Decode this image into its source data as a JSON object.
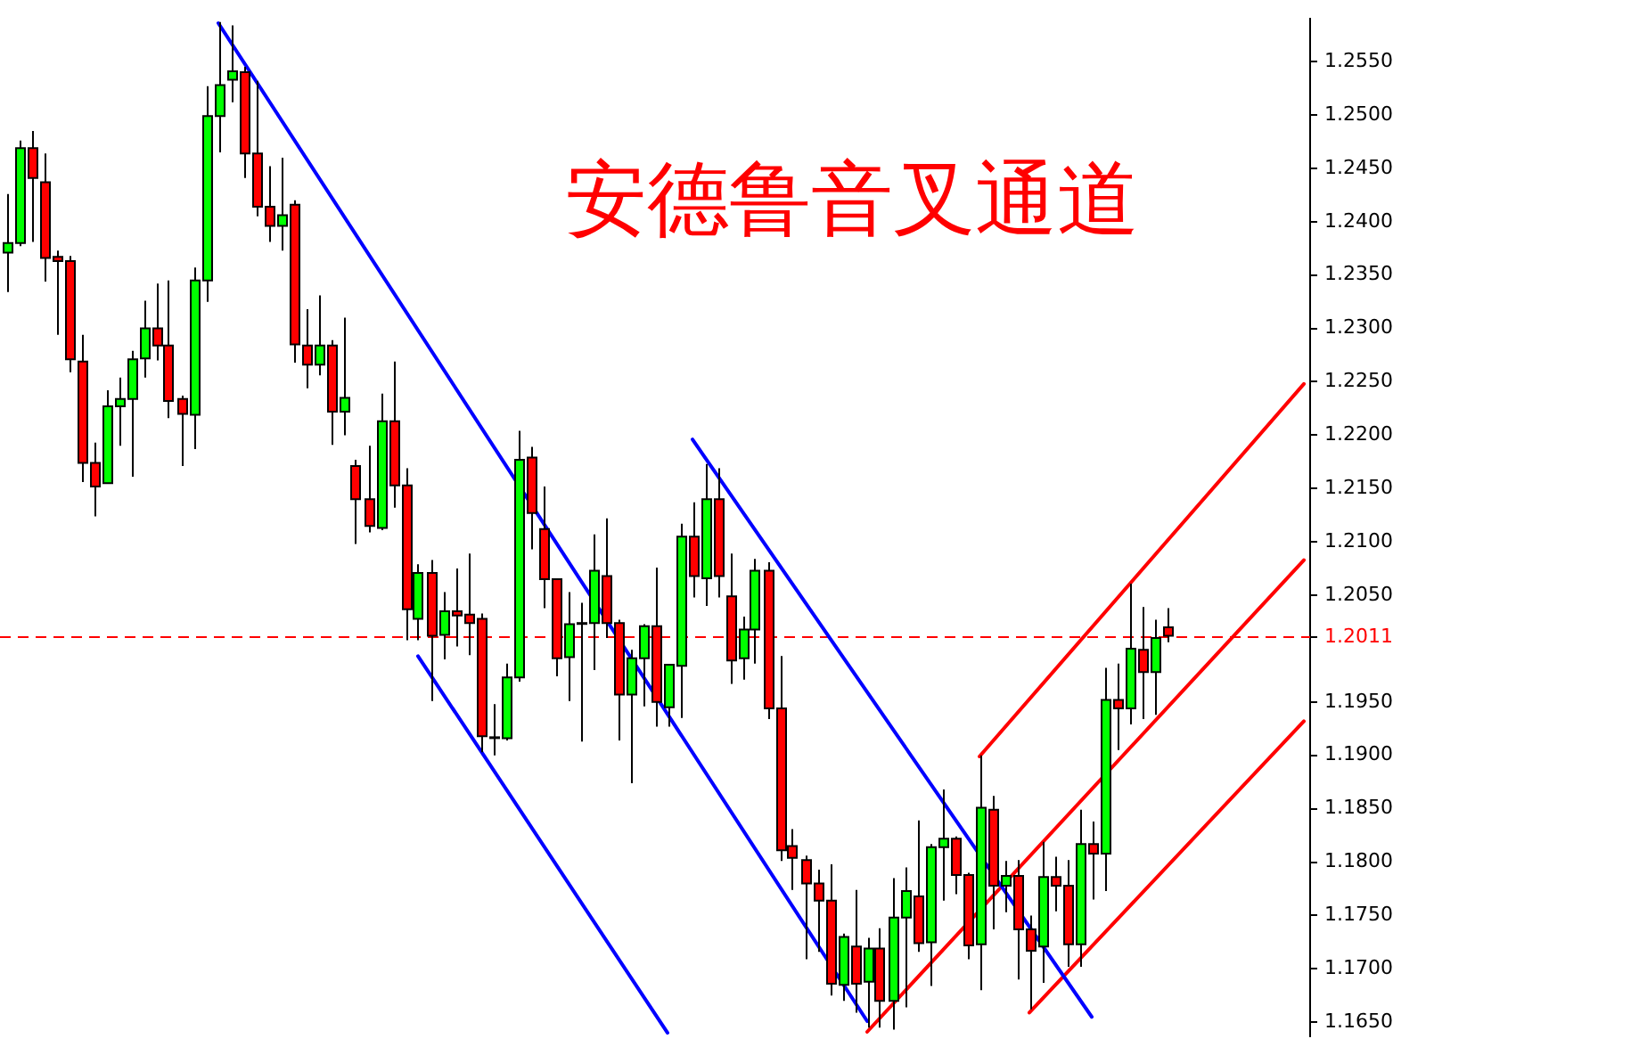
{
  "chart_data": {
    "type": "candlestick",
    "title": "安德鲁音叉通道",
    "categories": [
      null,
      null,
      null,
      null,
      null,
      null,
      null,
      null,
      null,
      null,
      null,
      null,
      null,
      null,
      null,
      null,
      null,
      null,
      null,
      null,
      null,
      null,
      null,
      null,
      null,
      null,
      null,
      null,
      null,
      null,
      null,
      null,
      null,
      null,
      null,
      null,
      null,
      null,
      null,
      null,
      null,
      null,
      null,
      null,
      null,
      null,
      null,
      null,
      null,
      null,
      null,
      null,
      null,
      null,
      null,
      null,
      null,
      null,
      null,
      null,
      null,
      null,
      null,
      null,
      null,
      null,
      null,
      null,
      null,
      null,
      null,
      null,
      null,
      null,
      null,
      null,
      null,
      null,
      null,
      null,
      null,
      null,
      null,
      null,
      null,
      null,
      null,
      null,
      null,
      null,
      null,
      null,
      null,
      null,
      null,
      null,
      null,
      null,
      null,
      null,
      null,
      null,
      null,
      null,
      null
    ],
    "ohlc": [
      [
        1.2371,
        1.2426,
        1.2334,
        1.238
      ],
      [
        1.238,
        1.2476,
        1.2377,
        1.2469
      ],
      [
        1.2469,
        1.2485,
        1.2381,
        1.2441
      ],
      [
        1.2437,
        1.2464,
        1.2344,
        1.2366
      ],
      [
        1.2367,
        1.2373,
        1.2294,
        1.2363
      ],
      [
        1.2363,
        1.2368,
        1.2259,
        1.2271
      ],
      [
        1.2269,
        1.2294,
        1.2156,
        1.2174
      ],
      [
        1.2174,
        1.2193,
        1.2124,
        1.2152
      ],
      [
        1.2155,
        1.2242,
        1.2155,
        1.2227
      ],
      [
        1.2227,
        1.2254,
        1.219,
        1.2234
      ],
      [
        1.2234,
        1.2279,
        1.2161,
        1.2271
      ],
      [
        1.2272,
        1.2326,
        1.2254,
        1.23
      ],
      [
        1.23,
        1.2342,
        1.227,
        1.2284
      ],
      [
        1.2284,
        1.2345,
        1.2216,
        1.2232
      ],
      [
        1.2234,
        1.2237,
        1.2171,
        1.222
      ],
      [
        1.2219,
        1.2357,
        1.2187,
        1.2345
      ],
      [
        1.2345,
        1.2527,
        1.2325,
        1.2499
      ],
      [
        1.2499,
        1.2587,
        1.2465,
        1.2528
      ],
      [
        1.2533,
        1.2584,
        1.2512,
        1.2541
      ],
      [
        1.254,
        1.2545,
        1.2441,
        1.2464
      ],
      [
        1.2464,
        1.2532,
        1.2405,
        1.2414
      ],
      [
        1.2414,
        1.2452,
        1.2381,
        1.2396
      ],
      [
        1.2396,
        1.246,
        1.2373,
        1.2406
      ],
      [
        1.2416,
        1.242,
        1.2268,
        1.2285
      ],
      [
        1.2284,
        1.2318,
        1.2244,
        1.2266
      ],
      [
        1.2266,
        1.2331,
        1.2256,
        1.2284
      ],
      [
        1.2284,
        1.2289,
        1.2191,
        1.2222
      ],
      [
        1.2222,
        1.231,
        1.22,
        1.2235
      ],
      [
        1.2171,
        1.2177,
        1.2098,
        1.214
      ],
      [
        1.214,
        1.219,
        1.2109,
        1.2115
      ],
      [
        1.2113,
        1.2239,
        1.2111,
        1.2213
      ],
      [
        1.2213,
        1.2269,
        1.2132,
        1.2153
      ],
      [
        1.2153,
        1.2169,
        1.2008,
        1.2037
      ],
      [
        1.2028,
        1.2079,
        1.2008,
        1.2071
      ],
      [
        1.2071,
        1.2083,
        1.1951,
        1.2012
      ],
      [
        1.2013,
        1.2053,
        1.199,
        1.2035
      ],
      [
        1.2035,
        1.2075,
        1.2002,
        1.2031
      ],
      [
        1.2032,
        1.2089,
        1.1994,
        1.2024
      ],
      [
        1.2028,
        1.2033,
        1.1903,
        1.1918
      ],
      [
        1.1917,
        1.1948,
        1.19,
        1.1917
      ],
      [
        1.1916,
        1.1986,
        1.1914,
        1.1973
      ],
      [
        1.1973,
        1.2204,
        1.1969,
        1.2177
      ],
      [
        1.2179,
        1.2189,
        1.2093,
        1.2127
      ],
      [
        1.2112,
        1.2152,
        1.2038,
        1.2065
      ],
      [
        1.2065,
        1.2065,
        1.1974,
        1.1991
      ],
      [
        1.1992,
        1.2053,
        1.1951,
        1.2023
      ],
      [
        1.2024,
        1.2043,
        1.1913,
        1.2024
      ],
      [
        1.2024,
        1.2107,
        1.198,
        1.2073
      ],
      [
        1.2068,
        1.2122,
        1.201,
        1.2024
      ],
      [
        1.2024,
        1.2027,
        1.1914,
        1.1957
      ],
      [
        1.1957,
        1.1999,
        1.1874,
        1.1991
      ],
      [
        1.1991,
        1.2023,
        1.1946,
        1.2021
      ],
      [
        1.2021,
        1.2076,
        1.1927,
        1.195
      ],
      [
        1.1945,
        1.1985,
        1.1927,
        1.1985
      ],
      [
        1.1984,
        1.2117,
        1.1935,
        1.2105
      ],
      [
        1.2105,
        1.2137,
        1.2048,
        1.2068
      ],
      [
        1.2066,
        1.2173,
        1.204,
        1.214
      ],
      [
        1.214,
        1.2169,
        1.2048,
        1.2068
      ],
      [
        1.2049,
        1.2089,
        1.1967,
        1.1989
      ],
      [
        1.1991,
        1.203,
        1.1971,
        1.2018
      ],
      [
        1.2018,
        1.2084,
        1.1986,
        1.2073
      ],
      [
        1.2073,
        1.2081,
        1.1934,
        1.1944
      ],
      [
        1.1944,
        1.1993,
        1.1801,
        1.1811
      ],
      [
        1.1815,
        1.1831,
        1.1774,
        1.1804
      ],
      [
        1.1802,
        1.1806,
        1.1709,
        1.178
      ],
      [
        1.178,
        1.1793,
        1.1716,
        1.1764
      ],
      [
        1.1764,
        1.1798,
        1.1675,
        1.1686
      ],
      [
        1.1685,
        1.1733,
        1.167,
        1.173
      ],
      [
        1.1721,
        1.1774,
        1.1659,
        1.1686
      ],
      [
        1.1688,
        1.1729,
        1.1645,
        1.1719
      ],
      [
        1.1719,
        1.1738,
        1.1645,
        1.167
      ],
      [
        1.167,
        1.1785,
        1.1643,
        1.1748
      ],
      [
        1.1748,
        1.1795,
        1.1664,
        1.1773
      ],
      [
        1.1768,
        1.1839,
        1.1716,
        1.1724
      ],
      [
        1.1725,
        1.1817,
        1.1684,
        1.1814
      ],
      [
        1.1814,
        1.1868,
        1.1764,
        1.1822
      ],
      [
        1.1822,
        1.1824,
        1.177,
        1.1788
      ],
      [
        1.1788,
        1.179,
        1.1709,
        1.1722
      ],
      [
        1.1723,
        1.19,
        1.168,
        1.1851
      ],
      [
        1.1849,
        1.1862,
        1.1737,
        1.1778
      ],
      [
        1.1778,
        1.1801,
        1.1753,
        1.1787
      ],
      [
        1.1787,
        1.1802,
        1.169,
        1.1737
      ],
      [
        1.1737,
        1.175,
        1.1662,
        1.1717
      ],
      [
        1.1721,
        1.1819,
        1.1687,
        1.1786
      ],
      [
        1.1786,
        1.1805,
        1.1754,
        1.1778
      ],
      [
        1.1778,
        1.1802,
        1.1702,
        1.1723
      ],
      [
        1.1723,
        1.1849,
        1.1702,
        1.1817
      ],
      [
        1.1817,
        1.1838,
        1.1765,
        1.1808
      ],
      [
        1.1808,
        1.1982,
        1.1773,
        1.1952
      ],
      [
        1.1952,
        1.1986,
        1.1905,
        1.1944
      ],
      [
        1.1944,
        1.2061,
        1.1929,
        1.2
      ],
      [
        1.1999,
        1.2039,
        1.1934,
        1.1978
      ],
      [
        1.1978,
        1.2027,
        1.1938,
        1.201
      ],
      [
        1.202,
        1.2038,
        1.2006,
        1.2012
      ],
      null,
      null,
      null,
      null,
      null,
      null,
      null,
      null,
      null,
      null,
      null
    ],
    "colors": [
      "#00ff00",
      "#00ff00",
      "#ff0000",
      "#ff0000",
      "#ff0000",
      "#ff0000",
      "#ff0000",
      "#ff0000",
      "#00ff00",
      "#00ff00",
      "#00ff00",
      "#00ff00",
      "#ff0000",
      "#ff0000",
      "#ff0000",
      "#00ff00",
      "#00ff00",
      "#00ff00",
      "#00ff00",
      "#ff0000",
      "#ff0000",
      "#ff0000",
      "#00ff00",
      "#ff0000",
      "#ff0000",
      "#00ff00",
      "#ff0000",
      "#00ff00",
      "#ff0000",
      "#ff0000",
      "#00ff00",
      "#ff0000",
      "#ff0000",
      "#00ff00",
      "#ff0000",
      "#00ff00",
      "#ff0000",
      "#ff0000",
      "#ff0000",
      "#000000",
      "#00ff00",
      "#00ff00",
      "#ff0000",
      "#ff0000",
      "#ff0000",
      "#00ff00",
      "#000000",
      "#00ff00",
      "#ff0000",
      "#ff0000",
      "#00ff00",
      "#00ff00",
      "#ff0000",
      "#00ff00",
      "#00ff00",
      "#ff0000",
      "#00ff00",
      "#ff0000",
      "#ff0000",
      "#00ff00",
      "#00ff00",
      "#ff0000",
      "#ff0000",
      "#ff0000",
      "#ff0000",
      "#ff0000",
      "#ff0000",
      "#00ff00",
      "#ff0000",
      "#00ff00",
      "#ff0000",
      "#00ff00",
      "#00ff00",
      "#ff0000",
      "#00ff00",
      "#00ff00",
      "#ff0000",
      "#ff0000",
      "#00ff00",
      "#ff0000",
      "#00ff00",
      "#ff0000",
      "#ff0000",
      "#00ff00",
      "#ff0000",
      "#ff0000",
      "#00ff00",
      "#ff0000",
      "#00ff00",
      "#ff0000",
      "#00ff00",
      "#ff0000",
      "#00ff00",
      "#ff0000",
      null,
      null,
      null,
      null,
      null,
      null,
      null,
      null,
      null,
      null,
      null
    ],
    "series": [
      {
        "type": "line",
        "color": "#0000ff",
        "values": [
          null,
          null,
          null,
          null,
          null,
          null,
          null,
          null,
          null,
          null,
          null,
          null,
          null,
          null,
          null,
          null,
          null,
          1.2586,
          null,
          null,
          null,
          null,
          null,
          null,
          null,
          null,
          null,
          null,
          null,
          null,
          null,
          null,
          null,
          null,
          null,
          null,
          null,
          null,
          null,
          null,
          null,
          null,
          null,
          null,
          null,
          null,
          null,
          null,
          null,
          null,
          null,
          null,
          null,
          null,
          null,
          null,
          null,
          null,
          null,
          null,
          null,
          null,
          null,
          null,
          null,
          null,
          null,
          null,
          null,
          1.1651,
          null,
          null,
          null,
          null,
          null,
          null,
          null,
          null,
          null,
          null,
          null,
          null,
          null,
          null,
          null,
          null,
          null,
          null,
          null,
          null,
          null,
          null,
          null,
          null,
          null,
          null,
          null,
          null,
          null,
          null,
          null,
          null,
          null,
          null,
          null
        ]
      },
      {
        "type": "line",
        "color": "#0000ff",
        "values": [
          null,
          null,
          null,
          null,
          null,
          null,
          null,
          null,
          null,
          null,
          null,
          null,
          null,
          null,
          null,
          null,
          null,
          null,
          null,
          null,
          null,
          null,
          null,
          null,
          null,
          null,
          null,
          null,
          null,
          null,
          null,
          null,
          null,
          1.1993,
          null,
          null,
          null,
          null,
          null,
          null,
          null,
          null,
          null,
          null,
          null,
          null,
          null,
          null,
          null,
          null,
          null,
          null,
          null,
          1.164,
          null,
          null,
          null,
          null,
          null,
          null,
          null,
          null,
          null,
          null,
          null,
          null,
          null,
          null,
          null,
          null,
          null,
          null,
          null,
          null,
          null,
          null,
          null,
          null,
          null,
          null,
          null,
          null,
          null,
          null,
          null,
          null,
          null,
          null,
          null,
          null,
          null,
          null,
          null,
          null,
          null,
          null,
          null,
          null,
          null,
          null,
          null,
          null,
          null,
          null,
          null
        ]
      },
      {
        "type": "line",
        "color": "#0000ff",
        "values": [
          null,
          null,
          null,
          null,
          null,
          null,
          null,
          null,
          null,
          null,
          null,
          null,
          null,
          null,
          null,
          null,
          null,
          null,
          null,
          null,
          null,
          null,
          null,
          null,
          null,
          null,
          null,
          null,
          null,
          null,
          null,
          null,
          null,
          null,
          null,
          null,
          null,
          null,
          null,
          null,
          null,
          null,
          null,
          null,
          null,
          null,
          null,
          null,
          null,
          null,
          null,
          null,
          null,
          null,
          null,
          1.2196,
          null,
          null,
          null,
          null,
          null,
          null,
          null,
          null,
          null,
          null,
          null,
          null,
          null,
          null,
          null,
          null,
          null,
          null,
          null,
          null,
          null,
          null,
          null,
          null,
          null,
          null,
          null,
          null,
          null,
          null,
          null,
          1.1655,
          null,
          null,
          null,
          null,
          null,
          null,
          null,
          null,
          null,
          null,
          null,
          null,
          null,
          null,
          null,
          null,
          null
        ]
      },
      {
        "type": "line",
        "color": "#ff0000",
        "values": [
          null,
          null,
          null,
          null,
          null,
          null,
          null,
          null,
          null,
          null,
          null,
          null,
          null,
          null,
          null,
          null,
          null,
          null,
          null,
          null,
          null,
          null,
          null,
          null,
          null,
          null,
          null,
          null,
          null,
          null,
          null,
          null,
          null,
          null,
          null,
          null,
          null,
          null,
          null,
          null,
          null,
          null,
          null,
          null,
          null,
          null,
          null,
          null,
          null,
          null,
          null,
          null,
          null,
          null,
          null,
          null,
          null,
          null,
          null,
          null,
          null,
          null,
          null,
          null,
          null,
          null,
          null,
          null,
          null,
          null,
          null,
          null,
          null,
          null,
          null,
          null,
          null,
          null,
          1.1899,
          null,
          null,
          null,
          null,
          null,
          null,
          null,
          null,
          null,
          null,
          null,
          null,
          null,
          null,
          null,
          null,
          null,
          null,
          null,
          null,
          null,
          null,
          null,
          null,
          null,
          1.2248
        ]
      },
      {
        "type": "line",
        "color": "#ff0000",
        "values": [
          null,
          null,
          null,
          null,
          null,
          null,
          null,
          null,
          null,
          null,
          null,
          null,
          null,
          null,
          null,
          null,
          null,
          null,
          null,
          null,
          null,
          null,
          null,
          null,
          null,
          null,
          null,
          null,
          null,
          null,
          null,
          null,
          null,
          null,
          null,
          null,
          null,
          null,
          null,
          null,
          null,
          null,
          null,
          null,
          null,
          null,
          null,
          null,
          null,
          null,
          null,
          null,
          null,
          null,
          null,
          null,
          null,
          null,
          null,
          null,
          null,
          null,
          null,
          null,
          null,
          null,
          null,
          null,
          null,
          1.1641,
          null,
          null,
          null,
          null,
          null,
          null,
          null,
          null,
          null,
          null,
          null,
          null,
          null,
          null,
          null,
          null,
          null,
          null,
          null,
          null,
          null,
          null,
          null,
          null,
          null,
          null,
          null,
          null,
          null,
          null,
          null,
          null,
          null,
          null,
          1.2083
        ]
      },
      {
        "type": "line",
        "color": "#ff0000",
        "values": [
          null,
          null,
          null,
          null,
          null,
          null,
          null,
          null,
          null,
          null,
          null,
          null,
          null,
          null,
          null,
          null,
          null,
          null,
          null,
          null,
          null,
          null,
          null,
          null,
          null,
          null,
          null,
          null,
          null,
          null,
          null,
          null,
          null,
          null,
          null,
          null,
          null,
          null,
          null,
          null,
          null,
          null,
          null,
          null,
          null,
          null,
          null,
          null,
          null,
          null,
          null,
          null,
          null,
          null,
          null,
          null,
          null,
          null,
          null,
          null,
          null,
          null,
          null,
          null,
          null,
          null,
          null,
          null,
          null,
          null,
          null,
          null,
          null,
          null,
          null,
          null,
          null,
          null,
          null,
          null,
          null,
          null,
          1.1659,
          null,
          null,
          null,
          null,
          null,
          null,
          null,
          null,
          null,
          null,
          null,
          null,
          null,
          null,
          null,
          null,
          null,
          null,
          null,
          null,
          null,
          1.1932
        ]
      }
    ],
    "ylim": [
      1.1637,
      1.259
    ],
    "yticks": [
      {
        "value": 1.165,
        "label": "1.1650"
      },
      {
        "value": 1.17,
        "label": "1.1700"
      },
      {
        "value": 1.175,
        "label": "1.1750"
      },
      {
        "value": 1.18,
        "label": "1.1800"
      },
      {
        "value": 1.185,
        "label": "1.1850"
      },
      {
        "value": 1.19,
        "label": "1.1900"
      },
      {
        "value": 1.195,
        "label": "1.1950"
      },
      {
        "value": 1.205,
        "label": "1.2050"
      },
      {
        "value": 1.21,
        "label": "1.2100"
      },
      {
        "value": 1.215,
        "label": "1.2150"
      },
      {
        "value": 1.22,
        "label": "1.2200"
      },
      {
        "value": 1.225,
        "label": "1.2250"
      },
      {
        "value": 1.23,
        "label": "1.2300"
      },
      {
        "value": 1.235,
        "label": "1.2350"
      },
      {
        "value": 1.24,
        "label": "1.2400"
      },
      {
        "value": 1.245,
        "label": "1.2450"
      },
      {
        "value": 1.25,
        "label": "1.2500"
      },
      {
        "value": 1.255,
        "label": "1.2550"
      }
    ],
    "ref_lines": [
      {
        "axis": "y",
        "value": 1.2011,
        "label": "1.2011",
        "color": "#ff0000",
        "line_style": "dashed"
      }
    ],
    "tick_labels": "y",
    "grid": false,
    "legend": false,
    "marker": "none"
  }
}
